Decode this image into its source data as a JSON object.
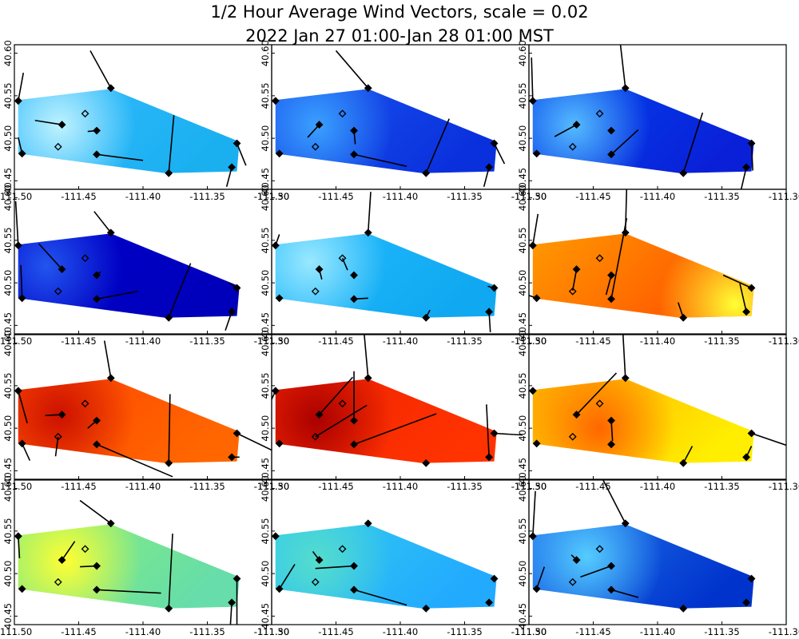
{
  "chart_data": {
    "type": "heatmap",
    "title_line1": "1/2 Hour Average Wind Vectors, scale =  0.02",
    "title_line2": "2022 Jan 27 01:00-Jan 28 01:00 MST",
    "xlim": [
      -111.5,
      -111.3
    ],
    "ylim": [
      40.44,
      40.61
    ],
    "x_ticks": [
      "-111.50",
      "-111.45",
      "-111.40",
      "-111.35",
      "-111.30"
    ],
    "y_ticks": [
      "40.45",
      "40.50",
      "40.55",
      "40.60"
    ],
    "domain_polygon": [
      [
        -111.497,
        40.545
      ],
      [
        -111.425,
        40.558
      ],
      [
        -111.325,
        40.496
      ],
      [
        -111.327,
        40.461
      ],
      [
        -111.383,
        40.459
      ],
      [
        -111.497,
        40.482
      ]
    ],
    "stations": [
      {
        "lon": -111.497,
        "lat": 40.544,
        "filled": true
      },
      {
        "lon": -111.425,
        "lat": 40.559,
        "filled": true
      },
      {
        "lon": -111.463,
        "lat": 40.516,
        "filled": true
      },
      {
        "lon": -111.445,
        "lat": 40.529,
        "filled": false
      },
      {
        "lon": -111.436,
        "lat": 40.509,
        "filled": true
      },
      {
        "lon": -111.494,
        "lat": 40.482,
        "filled": true
      },
      {
        "lon": -111.466,
        "lat": 40.49,
        "filled": false
      },
      {
        "lon": -111.436,
        "lat": 40.481,
        "filled": true
      },
      {
        "lon": -111.38,
        "lat": 40.459,
        "filled": true
      },
      {
        "lon": -111.327,
        "lat": 40.494,
        "filled": true
      },
      {
        "lon": -111.331,
        "lat": 40.466,
        "filled": true
      }
    ],
    "panels": [
      {
        "colors": {
          "bg": "#33bbff",
          "hot": "#bff2ff",
          "cool": "#1ab0f0"
        },
        "hot_spot": [
          -111.465,
          40.515
        ],
        "vectors": [
          [
            0.004,
            0.033
          ],
          [
            -0.016,
            0.044
          ],
          [
            -0.021,
            0.005
          ],
          [
            0,
            0
          ],
          [
            -0.007,
            -0.001
          ],
          [
            -0.003,
            0.019
          ],
          [
            0,
            0
          ],
          [
            0.036,
            -0.007
          ],
          [
            0.004,
            0.068
          ],
          [
            0.007,
            -0.026
          ],
          [
            -0.004,
            -0.023
          ]
        ]
      },
      {
        "colors": {
          "bg": "#1a55ee",
          "hot": "#3aa0ff",
          "cool": "#0a30dd"
        },
        "hot_spot": [
          -111.465,
          40.515
        ],
        "vectors": [
          [
            0.0,
            0.0
          ],
          [
            -0.025,
            0.044
          ],
          [
            -0.009,
            -0.015
          ],
          [
            0,
            0
          ],
          [
            0.001,
            -0.016
          ],
          [
            0,
            0
          ],
          [
            0,
            0
          ],
          [
            0.041,
            -0.014
          ],
          [
            0.018,
            0.064
          ],
          [
            0.008,
            -0.024
          ],
          [
            -0.004,
            -0.023
          ]
        ]
      },
      {
        "colors": {
          "bg": "#0044ee",
          "hot": "#55bbff",
          "cool": "#0a20d8"
        },
        "hot_spot": [
          -111.465,
          40.515
        ],
        "vectors": [
          [
            -0.001,
            0.051
          ],
          [
            -0.004,
            0.053
          ],
          [
            -0.017,
            -0.014
          ],
          [
            0,
            0
          ],
          [
            0,
            0
          ],
          [
            0,
            0
          ],
          [
            0,
            0
          ],
          [
            0.021,
            0.029
          ],
          [
            0.015,
            0.071
          ],
          [
            0.001,
            -0.032
          ],
          [
            -0.004,
            -0.026
          ]
        ]
      },
      {
        "colors": {
          "bg": "#0000cc",
          "hot": "#2255ee",
          "cool": "#0000bb"
        },
        "hot_spot": [
          -111.475,
          40.52
        ],
        "vectors": [
          [
            -0.002,
            0.052
          ],
          [
            -0.013,
            0.025
          ],
          [
            -0.018,
            0.03
          ],
          [
            0,
            0
          ],
          [
            0.003,
            0.004
          ],
          [
            -0.001,
            0.039
          ],
          [
            0,
            0
          ],
          [
            0.032,
            0.009
          ],
          [
            0.017,
            0.064
          ],
          [
            -0.006,
            0.006
          ],
          [
            -0.005,
            -0.022
          ]
        ]
      },
      {
        "colors": {
          "bg": "#22bbff",
          "hot": "#99e8ff",
          "cool": "#10a8f0"
        },
        "hot_spot": [
          -111.47,
          40.525
        ],
        "vectors": [
          [
            0.003,
            0.013
          ],
          [
            0.002,
            0.048
          ],
          [
            0.002,
            -0.012
          ],
          [
            0.004,
            -0.014
          ],
          [
            0,
            0
          ],
          [
            0,
            0
          ],
          [
            0,
            0
          ],
          [
            0.011,
            0.001
          ],
          [
            0.003,
            0.009
          ],
          [
            -0.005,
            0.002
          ],
          [
            0.001,
            -0.024
          ]
        ]
      },
      {
        "colors": {
          "bg": "#ff9900",
          "hot": "#ffff33",
          "cool": "#ff5500"
        },
        "hot_spot": [
          -111.34,
          40.475
        ],
        "vectors": [
          [
            0.004,
            0.037
          ],
          [
            0.002,
            0.108
          ],
          [
            -0.003,
            -0.025
          ],
          [
            0,
            0
          ],
          [
            -0.004,
            -0.023
          ],
          [
            -0.013,
            0.007
          ],
          [
            0,
            0
          ],
          [
            0.012,
            0.095
          ],
          [
            -0.004,
            0.018
          ],
          [
            -0.022,
            0.015
          ],
          [
            -0.005,
            0.033
          ]
        ]
      },
      {
        "colors": {
          "bg": "#ff4400",
          "hot": "#cc1100",
          "cool": "#ff6600"
        },
        "hot_spot": [
          -111.465,
          40.515
        ],
        "vectors": [
          [
            0.007,
            -0.038
          ],
          [
            -0.005,
            0.044
          ],
          [
            -0.013,
            -0.001
          ],
          [
            0,
            0
          ],
          [
            -0.007,
            -0.009
          ],
          [
            0.006,
            -0.02
          ],
          [
            -0.002,
            -0.023
          ],
          [
            0.059,
            -0.038
          ],
          [
            0.001,
            0.081
          ],
          [
            0.059,
            -0.043
          ],
          [
            0.006,
            0.0
          ]
        ]
      },
      {
        "colors": {
          "bg": "#ee2200",
          "hot": "#aa0000",
          "cool": "#ff3300"
        },
        "hot_spot": [
          -111.465,
          40.51
        ],
        "vectors": [
          [
            -0.013,
            -0.043
          ],
          [
            -0.003,
            0.051
          ],
          [
            0.026,
            0.044
          ],
          [
            0,
            0
          ],
          [
            0,
            0.058
          ],
          [
            0,
            0
          ],
          [
            0.04,
            0.037
          ],
          [
            0.064,
            0.036
          ],
          [
            0,
            0
          ],
          [
            0.022,
            -0.002
          ],
          [
            -0.002,
            0.062
          ]
        ]
      },
      {
        "colors": {
          "bg": "#ffaa00",
          "hot": "#ff6600",
          "cool": "#ffee00"
        },
        "hot_spot": [
          -111.445,
          40.5
        ],
        "vectors": [
          [
            0,
            0
          ],
          [
            -0.002,
            0.055
          ],
          [
            0.031,
            0.049
          ],
          [
            0,
            0
          ],
          [
            0.001,
            -0.024
          ],
          [
            0,
            0
          ],
          [
            0,
            0
          ],
          [
            0,
            0
          ],
          [
            0.007,
            0.02
          ],
          [
            0.029,
            -0.015
          ],
          [
            0.004,
            0.013
          ]
        ]
      },
      {
        "colors": {
          "bg": "#88ee77",
          "hot": "#ffff33",
          "cool": "#66ddaa"
        },
        "hot_spot": [
          -111.46,
          40.515
        ],
        "vectors": [
          [
            0.001,
            -0.026
          ],
          [
            -0.024,
            0.027
          ],
          [
            0.01,
            0.022
          ],
          [
            0,
            0
          ],
          [
            -0.013,
            -0.001
          ],
          [
            0,
            0
          ],
          [
            0,
            0
          ],
          [
            0.05,
            -0.004
          ],
          [
            0.003,
            0.088
          ],
          [
            0.0,
            -0.064
          ],
          [
            -0.002,
            -0.05
          ]
        ]
      },
      {
        "colors": {
          "bg": "#33ccee",
          "hot": "#55ddcc",
          "cool": "#22aaff"
        },
        "hot_spot": [
          -111.465,
          40.515
        ],
        "vectors": [
          [
            0,
            0
          ],
          [
            0,
            0
          ],
          [
            -0.005,
            0.01
          ],
          [
            0,
            0
          ],
          [
            -0.03,
            -0.003
          ],
          [
            0.012,
            0.029
          ],
          [
            0,
            0
          ],
          [
            0.041,
            -0.018
          ],
          [
            0,
            0
          ],
          [
            0,
            0
          ],
          [
            0,
            0
          ]
        ]
      },
      {
        "colors": {
          "bg": "#2277ee",
          "hot": "#55ccff",
          "cool": "#0033cc"
        },
        "hot_spot": [
          -111.455,
          40.52
        ],
        "vectors": [
          [
            0.002,
            0.053
          ],
          [
            -0.018,
            0.053
          ],
          [
            -0.004,
            0.006
          ],
          [
            0,
            0
          ],
          [
            -0.024,
            -0.013
          ],
          [
            0.006,
            0.026
          ],
          [
            0,
            0
          ],
          [
            0.021,
            -0.009
          ],
          [
            0,
            0
          ],
          [
            0,
            0
          ],
          [
            0,
            0
          ]
        ]
      }
    ]
  }
}
